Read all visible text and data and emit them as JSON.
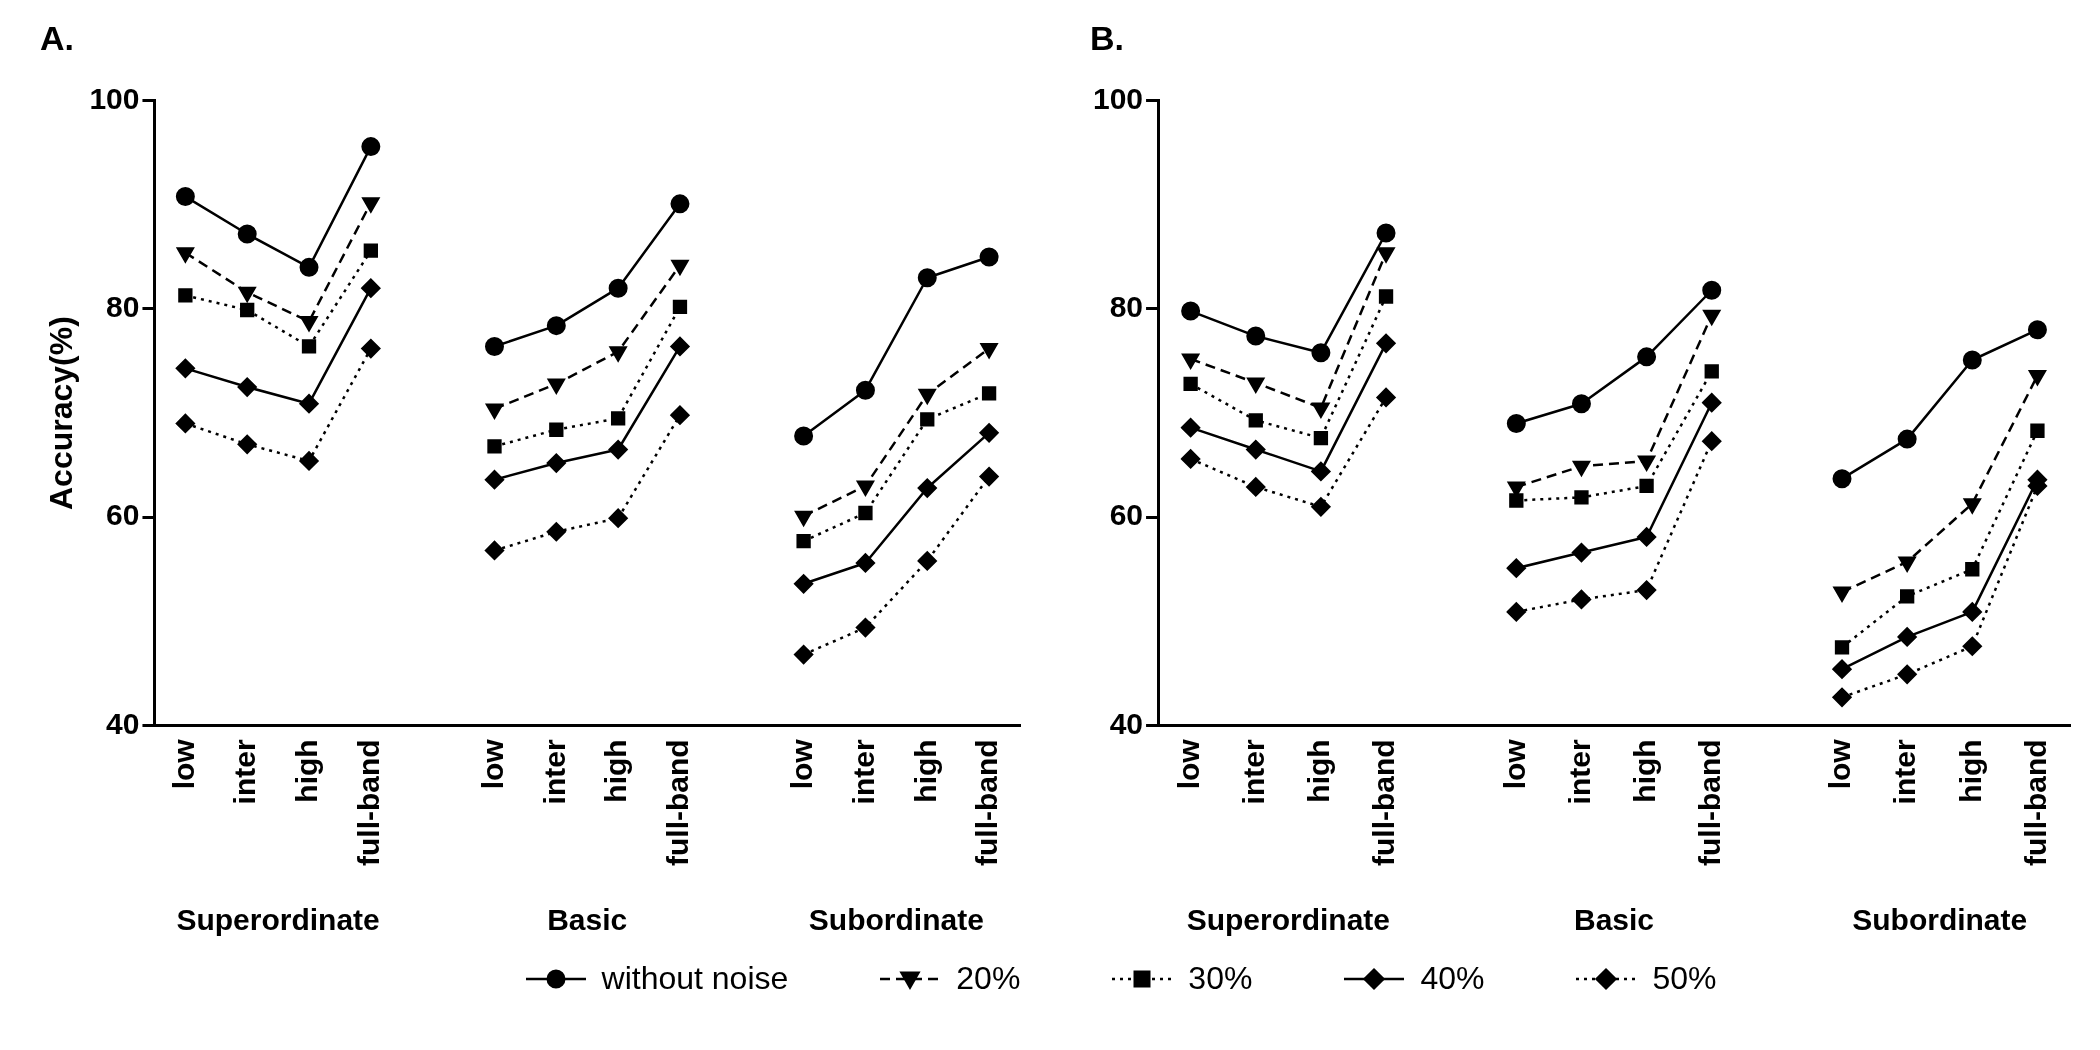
{
  "chart_data": [
    {
      "type": "line",
      "title": "A.",
      "ylabel": "Accuracy(%)",
      "categories": [
        "low",
        "inter",
        "high",
        "full-band",
        null,
        "low",
        "inter",
        "high",
        "full-band",
        null,
        "low",
        "inter",
        "high",
        "full-band"
      ],
      "annotations": [
        "Superordinate",
        "Basic",
        "Subordinate"
      ],
      "ylim": [
        40,
        100
      ],
      "yticks": [
        40,
        60,
        80,
        100
      ],
      "grid": false,
      "legend": "bottom",
      "series": [
        {
          "name": "without noise",
          "color": "#000000",
          "marker": "circle",
          "line_style": "solid",
          "values": [
            90.8,
            87.2,
            84.0,
            95.6,
            null,
            76.4,
            78.4,
            82.0,
            90.1,
            null,
            67.8,
            72.2,
            83.0,
            85.0
          ]
        },
        {
          "name": "20%",
          "color": "#000000",
          "marker": "triangle",
          "line_style": "dashed",
          "values": [
            85.4,
            81.6,
            78.8,
            90.2,
            null,
            70.4,
            72.8,
            75.9,
            84.2,
            null,
            60.1,
            63.0,
            71.8,
            76.2
          ]
        },
        {
          "name": "30%",
          "color": "#000000",
          "marker": "square",
          "line_style": "dotted",
          "values": [
            81.3,
            79.9,
            76.4,
            85.6,
            null,
            66.8,
            68.4,
            69.5,
            80.2,
            null,
            57.7,
            60.4,
            69.4,
            71.9
          ]
        },
        {
          "name": "40%",
          "color": "#000000",
          "marker": "diamond",
          "line_style": "solid",
          "values": [
            74.3,
            72.5,
            70.9,
            82.0,
            null,
            63.6,
            65.2,
            66.5,
            76.4,
            null,
            53.6,
            55.6,
            62.8,
            68.1
          ]
        },
        {
          "name": "50%",
          "color": "#000000",
          "marker": "diamond",
          "line_style": "dotted",
          "values": [
            69.0,
            67.0,
            65.4,
            76.2,
            null,
            56.8,
            58.6,
            59.9,
            69.8,
            null,
            46.8,
            49.4,
            55.8,
            63.9
          ]
        }
      ]
    },
    {
      "type": "line",
      "title": "B.",
      "categories": [
        "low",
        "inter",
        "high",
        "full-band",
        null,
        "low",
        "inter",
        "high",
        "full-band",
        null,
        "low",
        "inter",
        "high",
        "full-band"
      ],
      "annotations": [
        "Superordinate",
        "Basic",
        "Subordinate"
      ],
      "ylim": [
        40,
        100
      ],
      "yticks": [
        40,
        60,
        80,
        100
      ],
      "grid": false,
      "series": [
        {
          "color": "#000000",
          "marker": "circle",
          "line_style": "solid",
          "values": [
            79.8,
            77.4,
            75.8,
            87.3,
            null,
            69.0,
            70.9,
            75.4,
            81.8,
            null,
            63.7,
            67.5,
            75.1,
            78.0
          ]
        },
        {
          "color": "#000000",
          "marker": "triangle",
          "line_style": "dashed",
          "values": [
            75.2,
            72.9,
            70.5,
            85.4,
            null,
            62.9,
            64.9,
            65.4,
            79.4,
            null,
            52.8,
            55.7,
            61.3,
            73.6
          ]
        },
        {
          "color": "#000000",
          "marker": "square",
          "line_style": "dotted",
          "values": [
            72.8,
            69.3,
            67.6,
            81.2,
            null,
            61.6,
            61.9,
            63.0,
            74.0,
            null,
            47.5,
            52.4,
            55.0,
            68.3
          ]
        },
        {
          "color": "#000000",
          "marker": "diamond",
          "line_style": "solid",
          "values": [
            68.6,
            66.5,
            64.4,
            76.7,
            null,
            55.1,
            56.6,
            58.1,
            71.0,
            null,
            45.4,
            48.5,
            50.9,
            63.6
          ]
        },
        {
          "color": "#000000",
          "marker": "diamond",
          "line_style": "dotted",
          "values": [
            65.6,
            62.9,
            61.0,
            71.5,
            null,
            50.9,
            52.1,
            53.0,
            67.3,
            null,
            42.7,
            44.9,
            47.6,
            63.0
          ]
        }
      ]
    }
  ]
}
